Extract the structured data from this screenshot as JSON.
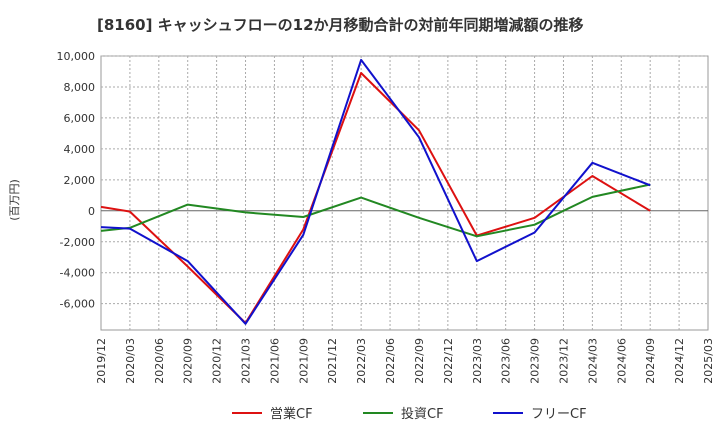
{
  "chart_data": {
    "type": "line",
    "title": "[8160]  キャッシュフローの12か月移動合計の対前年同期増減額の推移",
    "ylabel": "(百万円)",
    "xlabel": "",
    "ylim": [
      -7700,
      10000
    ],
    "yticks": [
      10000,
      8000,
      6000,
      4000,
      2000,
      0,
      -2000,
      -4000,
      -6000
    ],
    "ytick_labels": [
      "10,000",
      "8,000",
      "6,000",
      "4,000",
      "2,000",
      "0",
      "-2,000",
      "-4,000",
      "-6,000"
    ],
    "categories": [
      "2019/12",
      "2020/03",
      "2020/06",
      "2020/09",
      "2020/12",
      "2021/03",
      "2021/06",
      "2021/09",
      "2021/12",
      "2022/03",
      "2022/06",
      "2022/09",
      "2022/12",
      "2023/03",
      "2023/06",
      "2023/09",
      "2023/12",
      "2024/03",
      "2024/06",
      "2024/09",
      "2024/12",
      "2025/03"
    ],
    "grid": true,
    "legend_position": "bottom",
    "series": [
      {
        "name": "営業CF",
        "color": "#dd1111",
        "values": [
          250,
          -50,
          null,
          -3600,
          null,
          -7250,
          null,
          -1200,
          null,
          8900,
          null,
          5200,
          null,
          -1600,
          null,
          -450,
          null,
          2250,
          null,
          0,
          null,
          null
        ]
      },
      {
        "name": "投資CF",
        "color": "#228822",
        "values": [
          -1300,
          -1100,
          null,
          400,
          null,
          -100,
          null,
          -400,
          null,
          850,
          null,
          -450,
          null,
          -1650,
          null,
          -900,
          null,
          900,
          null,
          1700,
          null,
          null
        ]
      },
      {
        "name": "フリーCF",
        "color": "#1111cc",
        "values": [
          -1050,
          -1150,
          null,
          -3250,
          null,
          -7300,
          null,
          -1550,
          null,
          9750,
          null,
          4750,
          null,
          -3250,
          null,
          -1400,
          null,
          3100,
          null,
          1650,
          null,
          null
        ]
      }
    ]
  }
}
